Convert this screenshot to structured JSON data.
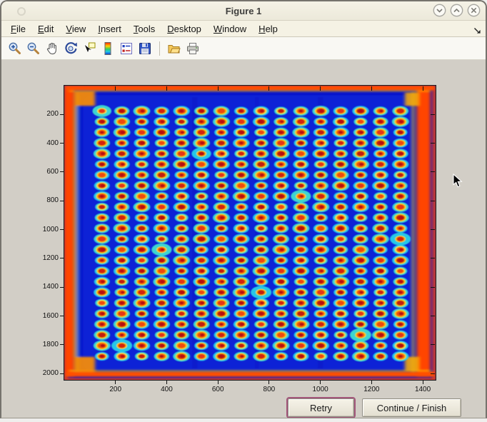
{
  "window": {
    "title": "Figure 1",
    "control_icons": [
      "window-menu",
      "chevron-down-minimize",
      "chevron-up-maximize",
      "x-close"
    ]
  },
  "menu": {
    "items": [
      "File",
      "Edit",
      "View",
      "Insert",
      "Tools",
      "Desktop",
      "Window",
      "Help"
    ],
    "overflow_icon": "dock-arrow"
  },
  "toolbar": {
    "icons": [
      "zoom-in",
      "zoom-out",
      "pan",
      "rotate-3d",
      "data-cursor",
      "colorbar",
      "legend",
      "save",
      "separator",
      "open-folder",
      "print"
    ]
  },
  "buttons": {
    "retry_label": "Retry",
    "continue_label": "Continue / Finish"
  },
  "chart_data": {
    "type": "heatmap",
    "title": "",
    "xlabel": "",
    "ylabel": "",
    "colormap": "jet",
    "description": "Jet-colormap intensity image of a 384-well microplate, 24 rows x 16 columns of hot (red core, yellow ring, cyan halo) wells on a deep blue background, with glowing red-orange plate edges and orange corner hot spots",
    "x_range": [
      0,
      1450
    ],
    "y_range": [
      0,
      2044
    ],
    "x_ticks": [
      200,
      400,
      600,
      800,
      1000,
      1200,
      1400
    ],
    "y_ticks": [
      200,
      400,
      600,
      800,
      1000,
      1200,
      1400,
      1600,
      1800,
      2000
    ],
    "grid": {
      "rows": 24,
      "cols": 16,
      "x_start": 147,
      "x_step": 77.7,
      "y_start": 176,
      "y_step": 74.1,
      "well": {
        "halo_rx": 30,
        "halo_ry": 33,
        "ring_rx": 21,
        "ring_ry": 24,
        "core_rx": 15,
        "core_ry": 17,
        "dot_rx": 8,
        "dot_ry": 9
      }
    },
    "colors": {
      "margin_blue": "#0813cb",
      "interior_blue": "#0d21d6",
      "halo": "#27d3e8",
      "halo_alt": "#3fe0d0",
      "ring": "#ffc800",
      "ring_alt": "#ffdf30",
      "cores": [
        "#e63412",
        "#d42410",
        "#f04a10",
        "#c41a10"
      ],
      "dot": "#b60f0f",
      "edge_red": "#ff4400",
      "edge_orange": "#ff5000",
      "corner": "#ff9000",
      "corner_light": "#ffb000",
      "streak_yellow": "#ffc800",
      "streak_cyan": "#22d0e0"
    }
  }
}
